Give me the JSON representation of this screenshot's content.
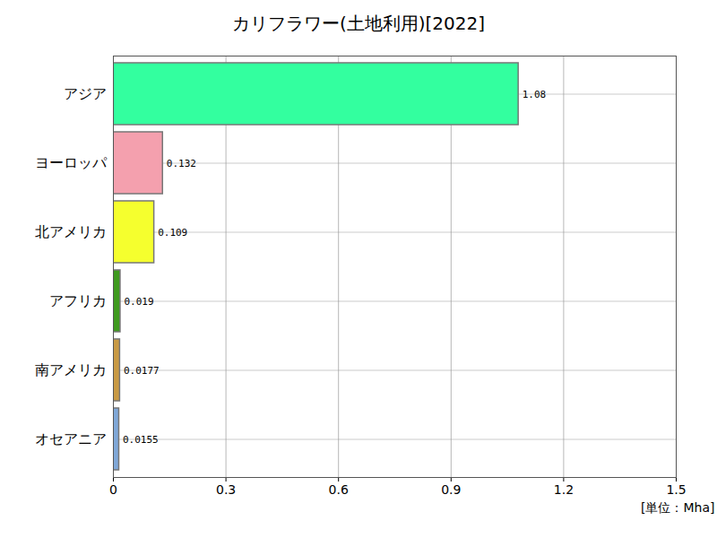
{
  "chart_data": {
    "type": "bar",
    "title": "カリフラワー(土地利用)[2022]",
    "orientation": "horizontal",
    "categories": [
      "アジア",
      "ヨーロッパ",
      "北アメリカ",
      "アフリカ",
      "南アメリカ",
      "オセアニア"
    ],
    "values": [
      1.08,
      0.132,
      0.109,
      0.019,
      0.0177,
      0.0155
    ],
    "colors": [
      "#33ff9f",
      "#f4a0ae",
      "#f5ff2e",
      "#3f9a1f",
      "#c99a45",
      "#80a8d8"
    ],
    "xlabel": "[単位：Mha]",
    "xlim": [
      0,
      1.5
    ],
    "xticks": [
      0,
      0.3,
      0.6,
      0.9,
      1.2,
      1.5
    ],
    "grid": true,
    "data_labels": true
  }
}
